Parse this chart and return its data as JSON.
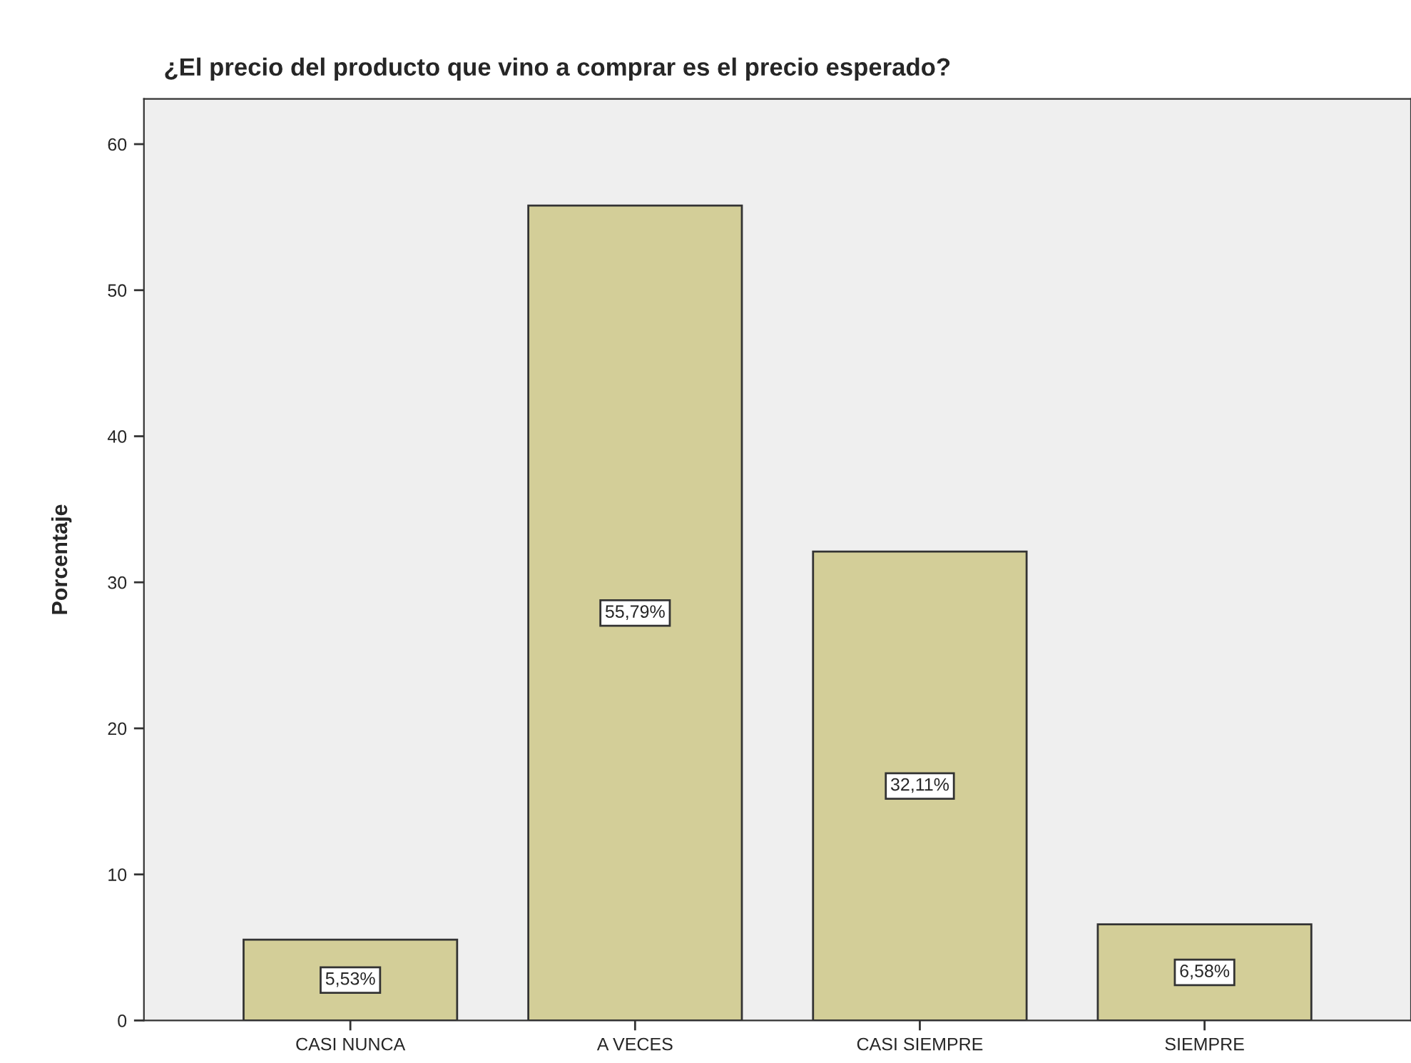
{
  "chart_data": {
    "type": "bar",
    "title": "¿El precio del producto que vino a comprar es el precio esperado?",
    "ylabel": "Porcentaje",
    "categories": [
      "CASI NUNCA",
      "A VECES",
      "CASI SIEMPRE",
      "SIEMPRE"
    ],
    "values": [
      5.53,
      55.79,
      32.11,
      6.58
    ],
    "value_labels": [
      "5,53%",
      "55,79%",
      "32,11%",
      "6,58%"
    ],
    "color": "#d3ce98",
    "ylim": [
      0,
      63.1
    ],
    "yticks": [
      0,
      10,
      20,
      30,
      40,
      50,
      60
    ],
    "grid": false,
    "legend": false
  }
}
